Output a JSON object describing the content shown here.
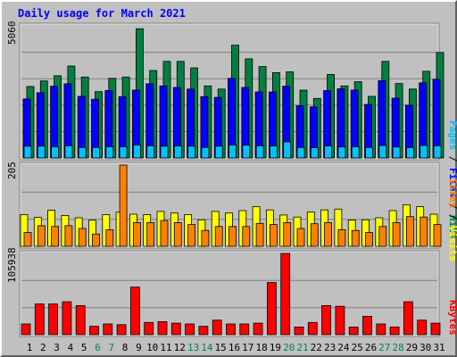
{
  "chart_data": {
    "type": "bar",
    "title": "Daily usage for March 2021",
    "categories": [
      "1",
      "2",
      "3",
      "4",
      "5",
      "6",
      "7",
      "8",
      "9",
      "10",
      "11",
      "12",
      "13",
      "14",
      "15",
      "16",
      "17",
      "18",
      "19",
      "20",
      "21",
      "22",
      "23",
      "24",
      "25",
      "26",
      "27",
      "28",
      "29",
      "30",
      "31"
    ],
    "weekend_days": [
      "6",
      "7",
      "13",
      "14",
      "20",
      "21",
      "27",
      "28"
    ],
    "panels": [
      {
        "id": "hits",
        "max_label": "5060",
        "ymax": 5060,
        "series": [
          {
            "name": "Hits",
            "color": "#008040",
            "values": [
              2740,
              2950,
              3150,
              3520,
              3100,
              2540,
              3050,
              3100,
              4950,
              3350,
              3700,
              3700,
              3450,
              2760,
              2640,
              4320,
              3800,
              3500,
              3270,
              3300,
              2600,
              2280,
              3200,
              2760,
              2920,
              2360,
              3700,
              2850,
              2640,
              3320,
              4040
            ]
          },
          {
            "name": "Files",
            "color": "#0000ff",
            "values": [
              2260,
              2500,
              2750,
              2840,
              2360,
              2250,
              2580,
              2350,
              2600,
              2840,
              2760,
              2700,
              2640,
              2350,
              2320,
              3050,
              2700,
              2530,
              2530,
              2750,
              2000,
              1960,
              2580,
              2650,
              2600,
              2050,
              2960,
              2290,
              2020,
              2880,
              3010
            ]
          },
          {
            "name": "Pages",
            "color": "#00c0ff",
            "values": [
              450,
              450,
              430,
              470,
              400,
              400,
              430,
              430,
              500,
              470,
              450,
              460,
              450,
              400,
              450,
              500,
              490,
              470,
              460,
              620,
              400,
              390,
              460,
              420,
              430,
              400,
              480,
              420,
              400,
              480,
              470
            ]
          }
        ],
        "axis_title": [
          "Pages",
          "Files",
          "Hits"
        ]
      },
      {
        "id": "visits",
        "max_label": "205",
        "ymax": 205,
        "series": [
          {
            "name": "Visits",
            "color": "#ffff00",
            "values": [
              80,
              73,
              91,
              78,
              72,
              66,
              80,
              86,
              81,
              80,
              88,
              84,
              80,
              67,
              88,
              84,
              90,
              100,
              92,
              79,
              74,
              87,
              92,
              94,
              66,
              67,
              72,
              90,
              105,
              100,
              81
            ]
          },
          {
            "name": "Sites",
            "color": "#ff8000",
            "values": [
              35,
              52,
              50,
              52,
              45,
              31,
              42,
              205,
              60,
              60,
              65,
              60,
              55,
              40,
              50,
              50,
              50,
              58,
              55,
              60,
              45,
              57,
              60,
              42,
              40,
              35,
              50,
              60,
              75,
              74,
              55
            ]
          }
        ],
        "axis_title": [
          "Sites",
          "Visits"
        ]
      },
      {
        "id": "kbytes",
        "max_label": "105938",
        "ymax": 105938,
        "series": [
          {
            "name": "KBytes",
            "color": "#ff0000",
            "values": [
              14000,
              40000,
              40000,
              43000,
              38000,
              11000,
              14000,
              13000,
              62000,
              16000,
              17000,
              15000,
              14000,
              11000,
              19000,
              14000,
              14000,
              15000,
              68000,
              105938,
              10000,
              16000,
              38000,
              37000,
              10000,
              24000,
              14000,
              10000,
              43000,
              19000,
              15000
            ]
          }
        ],
        "axis_title": [
          "KBytes"
        ]
      }
    ],
    "colors": {
      "title": "#0000ff",
      "weekday_label": "#000000",
      "weekend_label": "#00805c",
      "separator": "#000000",
      "label_hits": "#008040",
      "label_files": "#0000ff",
      "label_pages": "#00c0ff",
      "label_visits": "#ffff00",
      "label_sites": "#ff8000",
      "label_kbytes": "#ff0000"
    }
  }
}
